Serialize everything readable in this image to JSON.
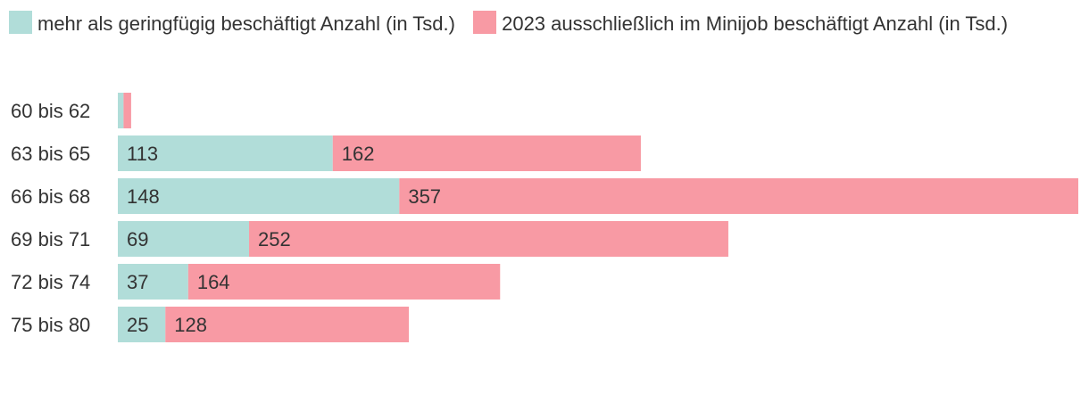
{
  "chart_data": {
    "type": "bar",
    "orientation": "horizontal",
    "stacked": true,
    "categories": [
      "60 bis 62",
      "63 bis 65",
      "66 bis 68",
      "69 bis 71",
      "72 bis 74",
      "75 bis 80"
    ],
    "series": [
      {
        "name": "mehr als geringfügig beschäftigt Anzahl (in Tsd.)",
        "color": "#b1ddd9",
        "values": [
          3,
          113,
          148,
          69,
          37,
          25
        ],
        "labels": [
          "",
          "113",
          "148",
          "69",
          "37",
          "25"
        ]
      },
      {
        "name": "2023 ausschließlich im Minijob beschäftigt Anzahl (in Tsd.)",
        "color": "#f89aa4",
        "values": [
          4,
          162,
          357,
          252,
          164,
          128
        ],
        "labels": [
          "",
          "162",
          "357",
          "252",
          "164",
          "128"
        ]
      }
    ],
    "xlim": [
      0,
      505
    ],
    "legend_position": "top",
    "grid": false
  }
}
